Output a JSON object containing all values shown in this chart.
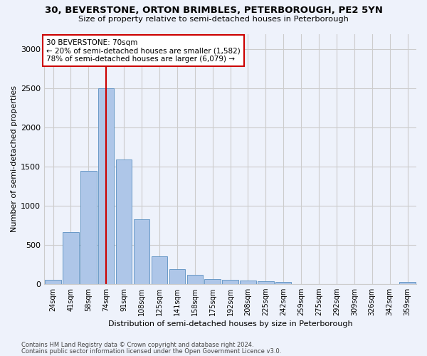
{
  "title1": "30, BEVERSTONE, ORTON BRIMBLES, PETERBOROUGH, PE2 5YN",
  "title2": "Size of property relative to semi-detached houses in Peterborough",
  "xlabel": "Distribution of semi-detached houses by size in Peterborough",
  "ylabel": "Number of semi-detached properties",
  "categories": [
    "24sqm",
    "41sqm",
    "58sqm",
    "74sqm",
    "91sqm",
    "108sqm",
    "125sqm",
    "141sqm",
    "158sqm",
    "175sqm",
    "192sqm",
    "208sqm",
    "225sqm",
    "242sqm",
    "259sqm",
    "275sqm",
    "292sqm",
    "309sqm",
    "326sqm",
    "342sqm",
    "359sqm"
  ],
  "values": [
    50,
    660,
    1450,
    2500,
    1590,
    830,
    350,
    185,
    120,
    60,
    55,
    40,
    30,
    25,
    0,
    0,
    0,
    0,
    0,
    0,
    20
  ],
  "bar_color": "#aec6e8",
  "bar_edge_color": "#5a8fc0",
  "vline_x_idx": 3.0,
  "annotation_title": "30 BEVERSTONE: 70sqm",
  "annotation_line1": "← 20% of semi-detached houses are smaller (1,582)",
  "annotation_line2": "78% of semi-detached houses are larger (6,079) →",
  "vline_color": "#cc0000",
  "annotation_box_color": "#ffffff",
  "annotation_box_edge": "#cc0000",
  "ylim": [
    0,
    3200
  ],
  "yticks": [
    0,
    500,
    1000,
    1500,
    2000,
    2500,
    3000
  ],
  "grid_color": "#cccccc",
  "bg_color": "#eef2fb",
  "footnote1": "Contains HM Land Registry data © Crown copyright and database right 2024.",
  "footnote2": "Contains public sector information licensed under the Open Government Licence v3.0."
}
